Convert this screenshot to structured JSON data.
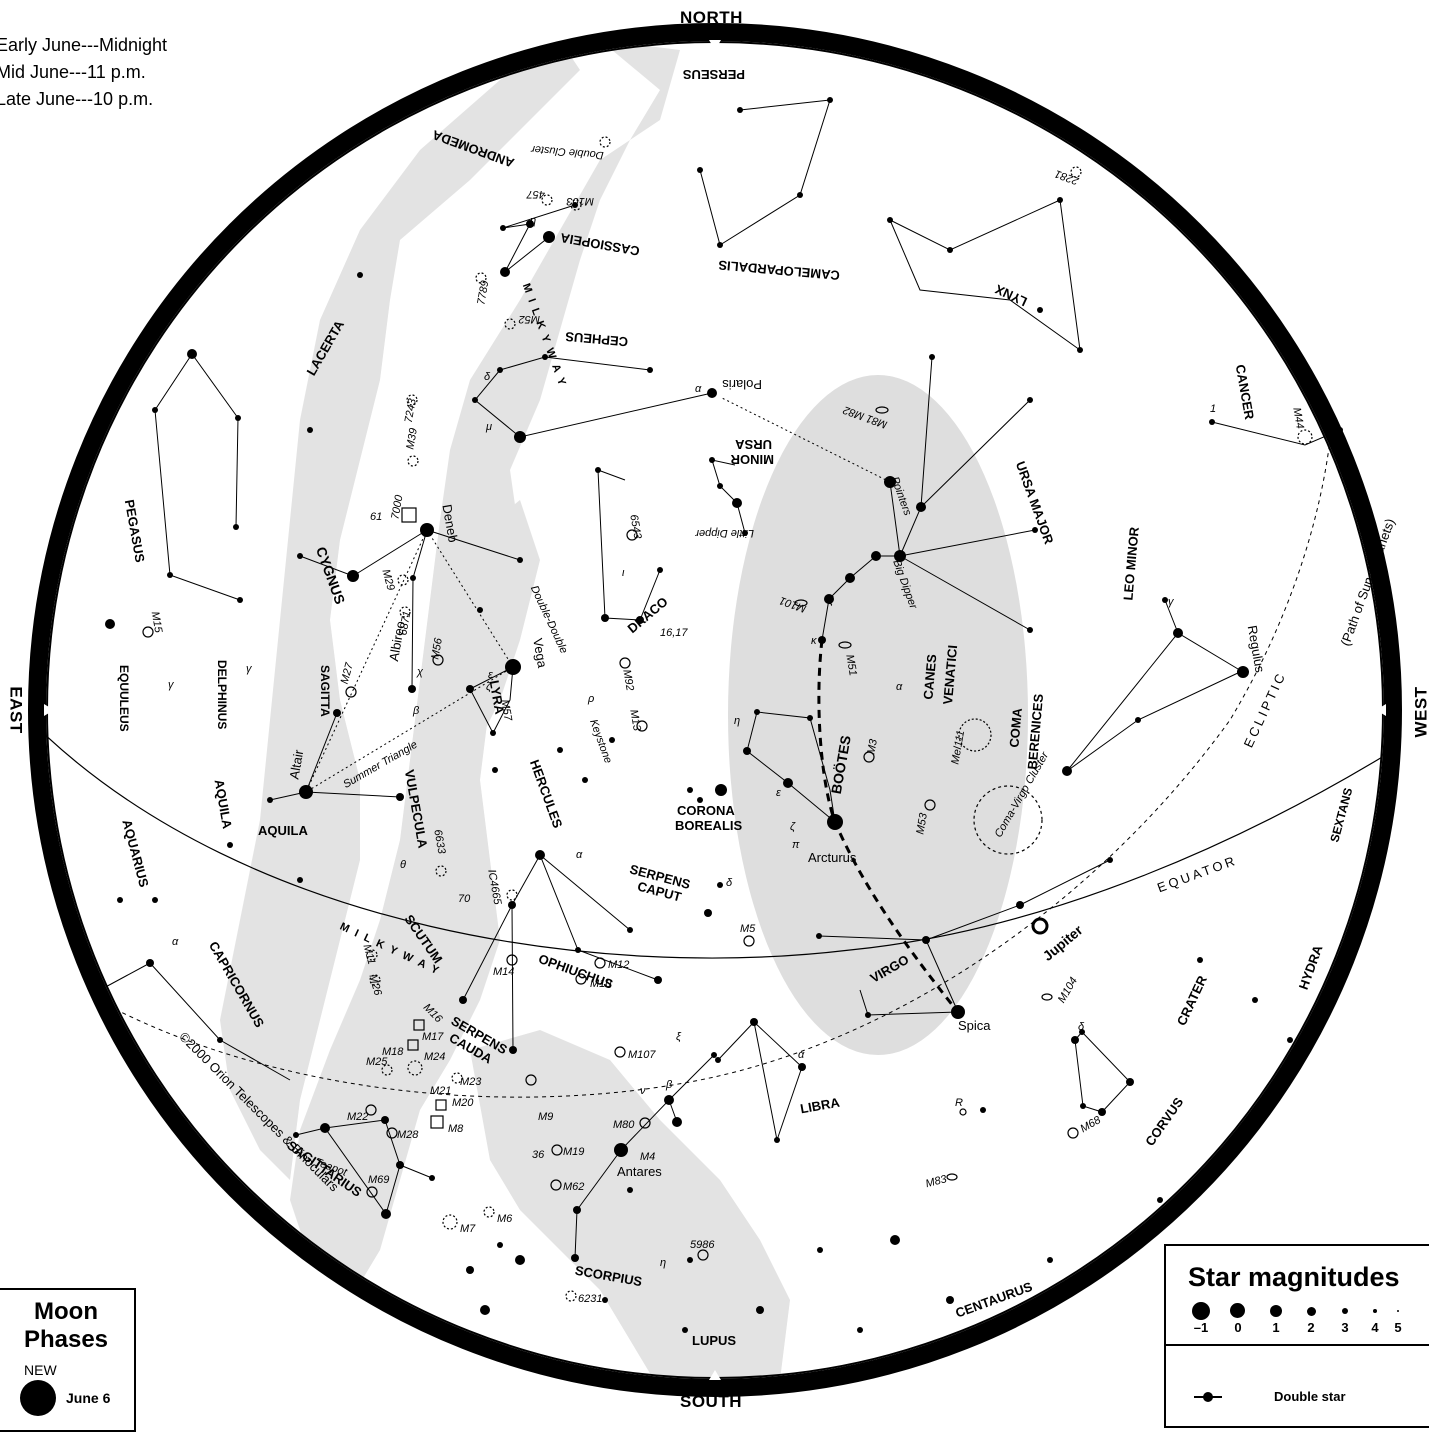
{
  "directions": {
    "north": "NORTH",
    "south": "SOUTH",
    "east": "EAST",
    "west": "WEST"
  },
  "viewing_times": [
    "Early June---Midnight",
    "Mid June---11 p.m.",
    "Late June---10 p.m."
  ],
  "copyright": "©2000 Orion Telescopes & Binoculars",
  "artist": "WIL TIRION",
  "moon_phases": {
    "title_line1": "Moon",
    "title_line2": "Phases",
    "phase": "NEW",
    "date": "June 6"
  },
  "legend": {
    "title": "Star magnitudes",
    "magnitudes": [
      "–1",
      "0",
      "1",
      "2",
      "3",
      "4",
      "5"
    ],
    "double_star": "Double star"
  },
  "lines": {
    "ecliptic": "ECLIPTIC",
    "ecliptic_note": "(Path of Sun & planets)",
    "equator": "EQUATOR"
  },
  "milky_way": "M I L K Y   W A Y",
  "constellations": {
    "perseus": "PERSEUS",
    "andromeda": "ANDROMEDA",
    "cassiopeia": "CASSIOPEIA",
    "camelopardalis": "CAMELOPARDALIS",
    "lynx": "LYNX",
    "cepheus": "CEPHEUS",
    "lacerta": "LACERTA",
    "ursa_minor_1": "URSA",
    "ursa_minor_2": "MINOR",
    "ursa_major": "URSA MAJOR",
    "cancer": "CANCER",
    "pegasus": "PEGASUS",
    "cygnus": "CYGNUS",
    "draco": "DRACO",
    "leo_minor": "LEO MINOR",
    "equuleus": "EQUULEUS",
    "delphinus": "DELPHINUS",
    "sagitta": "SAGITTA",
    "lyra": "LYRA",
    "canes_1": "CANES",
    "canes_2": "VENATICI",
    "coma_1": "COMA",
    "coma_2": "BERENICES",
    "bootes": "BOÖTES",
    "hercules": "HERCULES",
    "vulpecula": "VULPECULA",
    "aquila": "AQUILA",
    "aquarius": "AQUARIUS",
    "corona_1": "CORONA",
    "corona_2": "BOREALIS",
    "sextans": "SEXTANS",
    "serpens_caput_1": "SERPENS",
    "serpens_caput_2": "CAPUT",
    "scutum": "SCUTUM",
    "virgo": "VIRGO",
    "capricornus": "CAPRICORNUS",
    "ophiuchus": "OPHIUCHUS",
    "serpens_cauda_1": "SERPENS",
    "serpens_cauda_2": "CAUDA",
    "libra": "LIBRA",
    "crater": "CRATER",
    "hydra": "HYDRA",
    "corvus": "CORVUS",
    "sagittarius": "SAGITTARIUS",
    "scorpius": "SCORPIUS",
    "centaurus": "CENTAURUS",
    "lupus": "LUPUS"
  },
  "named_stars": {
    "polaris": "Polaris",
    "deneb": "Deneb",
    "vega": "Vega",
    "albireo": "Albireo",
    "altair": "Altair",
    "arcturus": "Arcturus",
    "regulus": "Regulus",
    "spica": "Spica",
    "antares": "Antares",
    "jupiter": "Jupiter"
  },
  "notes": {
    "double_cluster": "Double Cluster",
    "little_dipper": "Little Dipper",
    "big_dipper": "Big Dipper",
    "pointers": "Pointers",
    "double_double": "Double-Double",
    "keystone": "Keystone",
    "summer_triangle": "Summer Triangle",
    "teapot": "Teapot",
    "coma_virgo": "Coma-Virgo Cluster"
  },
  "objects": {
    "m103": "M103",
    "n457": "457",
    "n7789": "7789",
    "m52": "M52",
    "n7243": "7243",
    "m39": "M39",
    "n7000": "7000",
    "m29": "M29",
    "n6871": "6871",
    "m27": "M27",
    "m56": "M56",
    "m57": "M57",
    "m15": "M15",
    "m92": "M92",
    "m13": "M13",
    "n6543": "6543",
    "m81m82": "M81 M82",
    "m101": "M101",
    "m51": "M51",
    "m3": "M3",
    "mel111": "Mel111",
    "m53": "M53",
    "m44": "M44",
    "n2281": "2281",
    "n6633": "6633",
    "ic4665": "IC4665",
    "m11": "M11",
    "m26": "M26",
    "m5": "M5",
    "m12": "M12",
    "m10": "M10",
    "m14": "M14",
    "m16": "M16",
    "m17": "M17",
    "m18": "M18",
    "m24": "M24",
    "m25": "M25",
    "m23": "M23",
    "m21": "M21",
    "m20": "M20",
    "m8": "M8",
    "m22": "M22",
    "m28": "M28",
    "m69": "M69",
    "m9": "M9",
    "m107": "M107",
    "m19": "M19",
    "m62": "M62",
    "m80": "M80",
    "m4": "M4",
    "m7": "M7",
    "m6": "M6",
    "n6231": "6231",
    "n5986": "5986",
    "m104": "M104",
    "m68": "M68",
    "m83": "M83"
  },
  "greek": {
    "alpha": "α",
    "beta": "β",
    "gamma": "γ",
    "delta": "δ",
    "epsilon": "ε",
    "zeta": "ζ",
    "eta": "η",
    "theta": "θ",
    "mu": "μ",
    "nu": "ν",
    "xi": "ξ",
    "chi": "χ",
    "kappa": "κ",
    "rho": "ρ",
    "pi": "π",
    "iota": "ι",
    "n61": "61",
    "n70": "70",
    "n36": "36",
    "n16": "16,17",
    "R": "R",
    "n1": "1"
  }
}
